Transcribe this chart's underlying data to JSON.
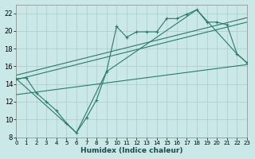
{
  "xlabel": "Humidex (Indice chaleur)",
  "background_color": "#cbe8e8",
  "grid_color": "#aacccc",
  "line_color": "#2a7a6a",
  "xlim": [
    0,
    23
  ],
  "ylim": [
    8,
    23
  ],
  "xticks": [
    0,
    1,
    2,
    3,
    4,
    5,
    6,
    7,
    8,
    9,
    10,
    11,
    12,
    13,
    14,
    15,
    16,
    17,
    18,
    19,
    20,
    21,
    22,
    23
  ],
  "yticks": [
    8,
    10,
    12,
    14,
    16,
    18,
    20,
    22
  ],
  "main_line": {
    "x": [
      0,
      1,
      2,
      3,
      4,
      5,
      6,
      7,
      8,
      9,
      10,
      11,
      12,
      13,
      14,
      15,
      16,
      17,
      18,
      19,
      20,
      21,
      22,
      23
    ],
    "y": [
      14.6,
      14.7,
      13.0,
      12.0,
      11.0,
      9.6,
      8.5,
      10.2,
      12.2,
      15.4,
      20.5,
      19.3,
      19.9,
      19.9,
      19.9,
      21.4,
      21.4,
      21.9,
      22.4,
      21.0,
      21.0,
      20.7,
      17.4,
      16.4
    ]
  },
  "reg_upper": {
    "x": [
      0,
      23
    ],
    "y": [
      15.0,
      21.5
    ]
  },
  "reg_lower_close": {
    "x": [
      0,
      23
    ],
    "y": [
      14.5,
      21.0
    ]
  },
  "reg_bottom": {
    "x": [
      0,
      23
    ],
    "y": [
      12.8,
      16.2
    ]
  },
  "envelope": {
    "x": [
      0,
      6,
      9,
      18,
      22,
      23
    ],
    "y": [
      14.6,
      8.5,
      15.4,
      22.4,
      17.4,
      16.4
    ]
  }
}
